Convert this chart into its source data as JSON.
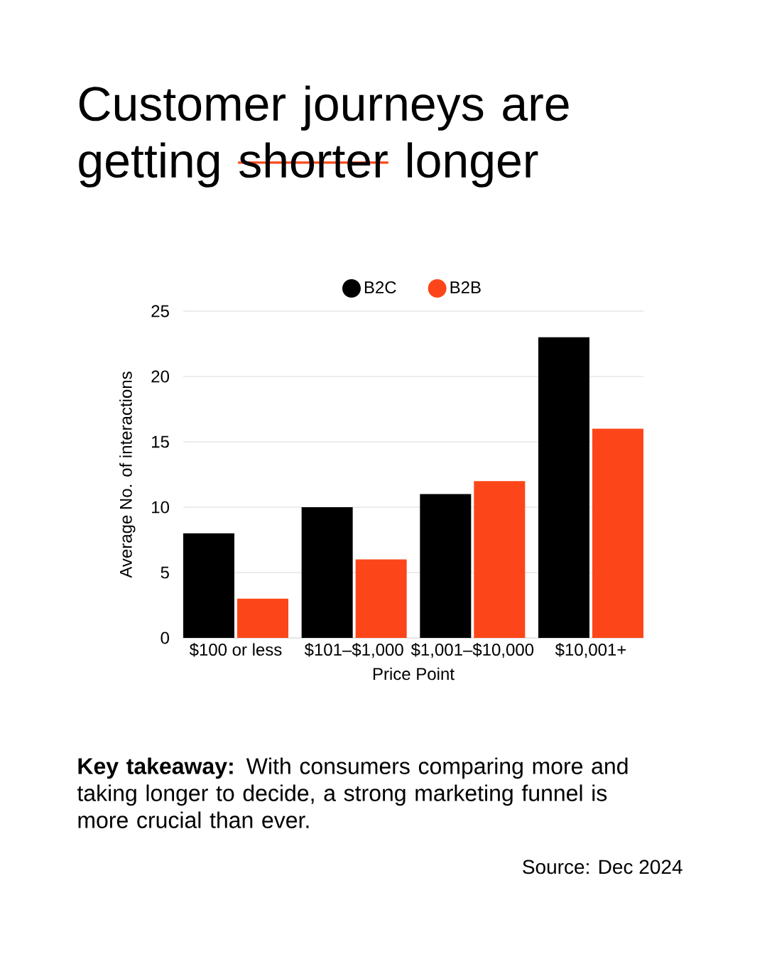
{
  "chart_data": {
    "type": "bar",
    "title": "Customer journeys are getting",
    "annotations": [
      "shorter",
      "longer",
      "**Key takeaway:** With consumers comparing more and taking longer to decide, a strong marketing funnel is more crucial than ever.",
      "Source: Dec 2024"
    ],
    "xlabel": "Price Point",
    "ylabel": "Average No. of interactions",
    "categories": [
      "$100 or less",
      "$101–$1,000",
      "$1,001–$10,000",
      "$10,001+"
    ],
    "series": [
      {
        "name": "B2C",
        "color": "#000000",
        "values": [
          8,
          10,
          11,
          23
        ]
      },
      {
        "name": "B2B",
        "color": "#fc4619",
        "values": [
          3,
          6,
          12,
          16
        ]
      }
    ],
    "ylim": [
      0,
      25
    ],
    "yticks": [
      0,
      5,
      10,
      15,
      20,
      25
    ],
    "grid": "y",
    "legend": "top"
  }
}
